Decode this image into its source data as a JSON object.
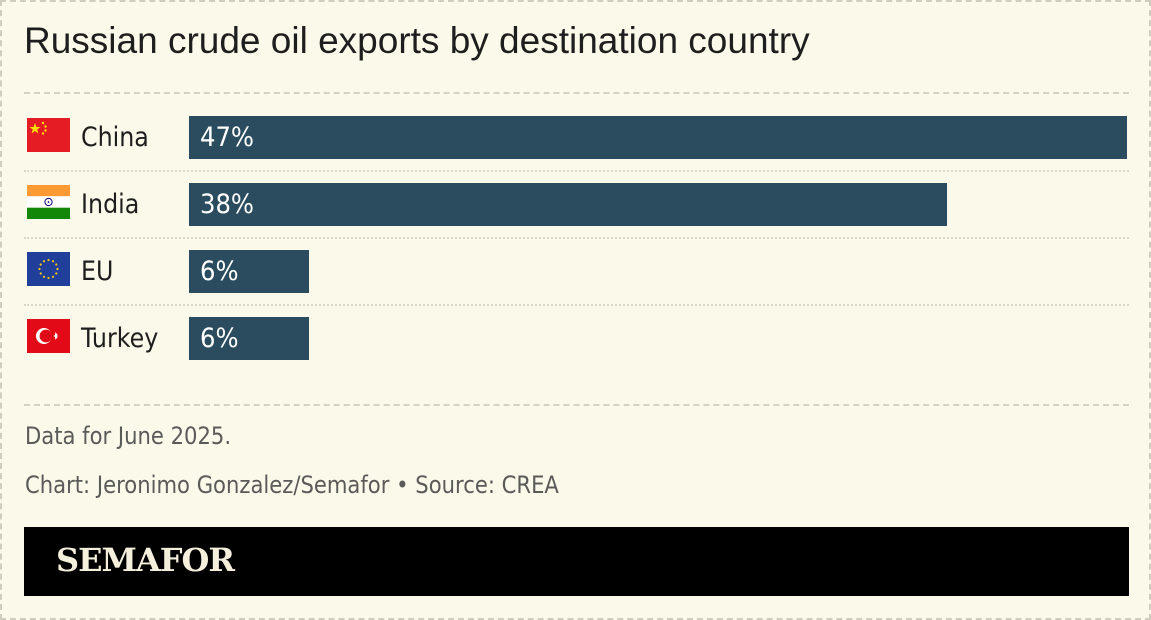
{
  "title": "Russian crude oil exports by destination country",
  "chart_data": {
    "type": "bar",
    "orientation": "horizontal",
    "categories": [
      "China",
      "India",
      "EU",
      "Turkey"
    ],
    "values": [
      47,
      38,
      6,
      6
    ],
    "value_labels": [
      "47%",
      "38%",
      "6%",
      "6%"
    ],
    "unit": "%",
    "xlim": [
      0,
      47
    ],
    "bar_color": "#2a4c5e",
    "grid": false
  },
  "flags": [
    "china-flag-icon",
    "india-flag-icon",
    "eu-flag-icon",
    "turkey-flag-icon"
  ],
  "notes": {
    "data_note": "Data for June 2025.",
    "credit": "Chart: Jeronimo Gonzalez/Semafor • Source: CREA"
  },
  "footer": {
    "logo": "SEMAFOR"
  },
  "colors": {
    "background": "#fbf9ea",
    "footer": "#000000"
  }
}
